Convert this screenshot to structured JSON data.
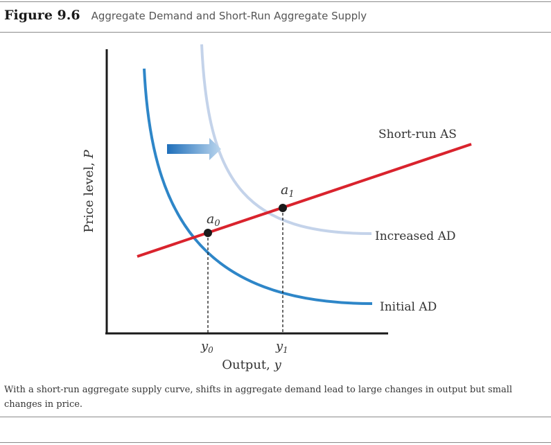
{
  "figure": {
    "label": "Figure 9.6",
    "title": "Aggregate Demand and Short-Run Aggregate Supply"
  },
  "diagram": {
    "y_axis_label": "Price level, ",
    "y_axis_var": "P",
    "x_axis_label": "Output, ",
    "x_axis_var": "y",
    "curves": {
      "short_run_as": "Short-run AS",
      "increased_ad": "Increased AD",
      "initial_ad": "Initial AD"
    },
    "points": {
      "a0": {
        "base": "a",
        "sub": "0"
      },
      "a1": {
        "base": "a",
        "sub": "1"
      }
    },
    "x_ticks": {
      "y0": {
        "base": "y",
        "sub": "0"
      },
      "y1": {
        "base": "y",
        "sub": "1"
      }
    },
    "colors": {
      "initial_ad": "#2e86c8",
      "increased_ad": "#c4d3ea",
      "short_run_as": "#d9232d",
      "axis": "#1a1a1a",
      "arrow": "#3b8fd4"
    }
  },
  "caption": "With a short-run aggregate supply curve, shifts in aggregate demand lead to large changes in output but small changes in price."
}
